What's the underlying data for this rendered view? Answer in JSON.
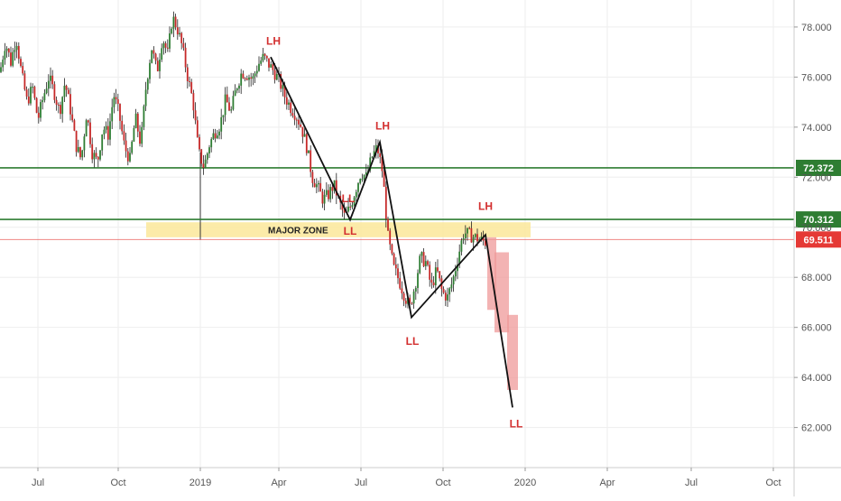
{
  "chart_data": {
    "type": "candlestick",
    "x_tick_labels": [
      "Jul",
      "Oct",
      "2019",
      "Apr",
      "Jul",
      "Oct",
      "2020",
      "Apr",
      "Jul",
      "Oct"
    ],
    "y_tick_labels": [
      "62.000",
      "64.000",
      "66.000",
      "68.000",
      "70.000",
      "72.000",
      "74.000",
      "76.000",
      "78.000"
    ],
    "ylim": [
      60.5,
      78.7
    ],
    "price_path": [
      [
        0,
        76.2
      ],
      [
        6,
        77.4
      ],
      [
        12,
        76.6
      ],
      [
        18,
        77.6
      ],
      [
        24,
        76.1
      ],
      [
        30,
        75.0
      ],
      [
        36,
        75.6
      ],
      [
        42,
        74.3
      ],
      [
        48,
        75.2
      ],
      [
        54,
        76.0
      ],
      [
        60,
        75.4
      ],
      [
        66,
        74.6
      ],
      [
        72,
        75.8
      ],
      [
        78,
        74.7
      ],
      [
        84,
        73.3
      ],
      [
        90,
        72.7
      ],
      [
        96,
        74.6
      ],
      [
        102,
        73.0
      ],
      [
        108,
        72.6
      ],
      [
        114,
        74.0
      ],
      [
        120,
        73.7
      ],
      [
        126,
        75.3
      ],
      [
        132,
        74.5
      ],
      [
        138,
        73.2
      ],
      [
        144,
        72.7
      ],
      [
        150,
        74.4
      ],
      [
        156,
        73.3
      ],
      [
        162,
        75.7
      ],
      [
        168,
        77.2
      ],
      [
        174,
        76.2
      ],
      [
        180,
        77.6
      ],
      [
        186,
        76.9
      ],
      [
        191,
        78.4
      ],
      [
        196,
        78.0
      ],
      [
        202,
        77.2
      ],
      [
        208,
        76.0
      ],
      [
        214,
        75.0
      ],
      [
        220,
        73.0
      ],
      [
        226,
        72.4
      ],
      [
        232,
        73.3
      ],
      [
        238,
        73.8
      ],
      [
        244,
        74.1
      ],
      [
        250,
        75.1
      ],
      [
        256,
        74.6
      ],
      [
        262,
        75.6
      ],
      [
        268,
        76.2
      ],
      [
        274,
        76.1
      ],
      [
        280,
        75.9
      ],
      [
        286,
        76.5
      ],
      [
        292,
        76.8
      ],
      [
        298,
        76.5
      ],
      [
        304,
        76.2
      ],
      [
        310,
        75.8
      ],
      [
        316,
        75.2
      ],
      [
        322,
        74.8
      ],
      [
        328,
        74.5
      ],
      [
        334,
        74.0
      ],
      [
        340,
        73.2
      ],
      [
        346,
        72.0
      ],
      [
        352,
        71.6
      ],
      [
        358,
        71.1
      ],
      [
        364,
        71.3
      ],
      [
        370,
        71.7
      ],
      [
        376,
        71.0
      ],
      [
        382,
        70.4
      ],
      [
        388,
        70.8
      ],
      [
        394,
        71.5
      ],
      [
        400,
        72.2
      ],
      [
        406,
        72.0
      ],
      [
        412,
        72.8
      ],
      [
        418,
        73.2
      ],
      [
        424,
        72.2
      ],
      [
        430,
        69.6
      ],
      [
        436,
        68.4
      ],
      [
        442,
        67.9
      ],
      [
        448,
        67.3
      ],
      [
        454,
        66.8
      ],
      [
        460,
        67.7
      ],
      [
        466,
        68.8
      ],
      [
        472,
        68.6
      ],
      [
        478,
        67.6
      ],
      [
        484,
        68.3
      ],
      [
        490,
        67.4
      ],
      [
        496,
        67.2
      ],
      [
        502,
        67.9
      ],
      [
        508,
        68.9
      ],
      [
        514,
        69.8
      ],
      [
        520,
        69.7
      ],
      [
        526,
        69.6
      ],
      [
        532,
        69.5
      ],
      [
        538,
        69.4
      ],
      [
        544,
        68.2
      ],
      [
        550,
        66.8
      ],
      [
        556,
        66.1
      ],
      [
        562,
        64.6
      ],
      [
        568,
        63.2
      ]
    ],
    "structure_path": [
      [
        300,
        76.8
      ],
      [
        388,
        70.3
      ],
      [
        421,
        73.4
      ],
      [
        456,
        66.4
      ],
      [
        538,
        69.7
      ],
      [
        568,
        62.8
      ]
    ],
    "horizontal_lines": [
      {
        "value": 72.372,
        "label": "72.372",
        "color": "#2e7d32"
      },
      {
        "value": 70.312,
        "label": "70.312",
        "color": "#2e7d32"
      },
      {
        "value": 69.511,
        "label": "69.511",
        "color": "#e53935"
      }
    ],
    "zone": {
      "label": "MAJOR ZONE",
      "y_top": 70.2,
      "y_bottom": 69.6,
      "color": "#fbe79a"
    },
    "annotations": [
      {
        "text": "LH",
        "x": 303,
        "y": 77.3
      },
      {
        "text": "LH",
        "x": 424,
        "y": 73.9
      },
      {
        "text": "LH",
        "x": 538,
        "y": 70.7
      },
      {
        "text": "LL",
        "x": 388,
        "y": 69.7
      },
      {
        "text": "LL",
        "x": 457,
        "y": 65.3
      },
      {
        "text": "LL",
        "x": 572,
        "y": 62.0
      },
      {
        "text": "LL",
        "x": 386,
        "y": 71.0
      }
    ],
    "red_boxes": [
      {
        "x0": 540,
        "x1": 550,
        "y_top": 69.6,
        "y_bottom": 66.7
      },
      {
        "x0": 548,
        "x1": 564,
        "y_top": 69.0,
        "y_bottom": 65.8
      },
      {
        "x0": 562,
        "x1": 574,
        "y_top": 66.5,
        "y_bottom": 63.5
      }
    ],
    "colors": {
      "bull": "#2e7d32",
      "bear": "#c62828",
      "wick_neutral": "#333333",
      "annotation": "#d32f2f",
      "structure": "#111111",
      "grid": "#eeeeee",
      "axis_text": "#555555",
      "red_box": "#ef9a9a"
    }
  }
}
